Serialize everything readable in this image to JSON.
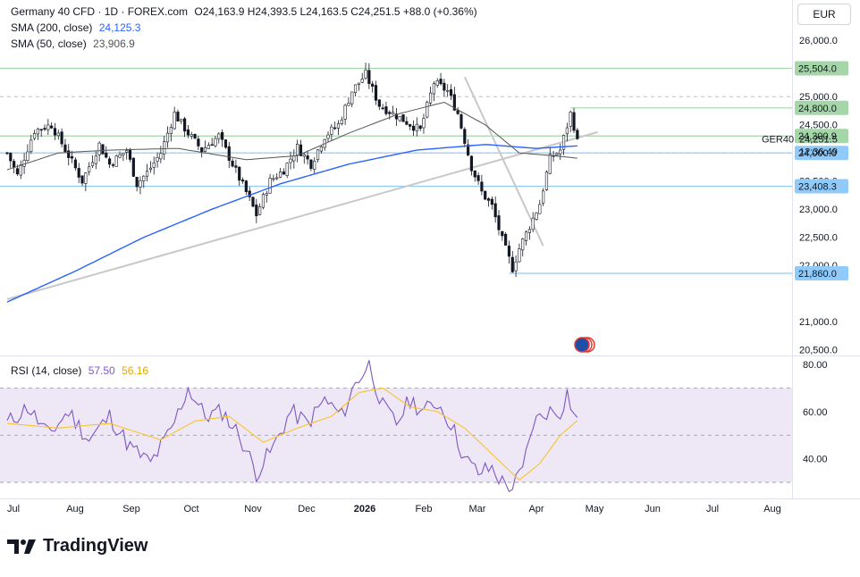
{
  "header": {
    "symbol": "Germany 40 CFD · 1D · FOREX.com",
    "ohlc": "O24,163.9  H24,393.5  L24,163.5  C24,251.5  +88.0 (+0.36%)",
    "sma200_label": "SMA (200, close)",
    "sma200_value": "24,125.3",
    "sma50_label": "SMA (50, close)",
    "sma50_value": "23,906.9",
    "currency": "EUR"
  },
  "rsi_header": {
    "label": "RSI (14, close)",
    "value1": "57.50",
    "value2": "56.16"
  },
  "brand": {
    "name": "TradingView"
  },
  "colors": {
    "up": "#131722",
    "down": "#131722",
    "sma200": "#2962ff",
    "sma50": "#555555",
    "rsi": "#7e57c2",
    "rsi_ma": "#f7c52b",
    "green_level": "#a5d6a7",
    "blue_level": "#90caf9",
    "rsi_band": "#ede7f6",
    "trendline": "#c8c8c8"
  },
  "chart_data": {
    "type": "candlestick",
    "x_ticks": [
      "Jul",
      "Aug",
      "Sep",
      "Oct",
      "Nov",
      "Dec",
      "2026",
      "Feb",
      "Mar",
      "Apr",
      "May",
      "Jun",
      "Jul",
      "Aug"
    ],
    "price_axis_ticks": [
      "26,000.0",
      "25,000.0",
      "24,500.0",
      "23,500.0",
      "23,000.0",
      "22,500.0",
      "22,000.0",
      "21,000.0",
      "20,500.0"
    ],
    "price_range": [
      20400,
      26400
    ],
    "key_points": [
      [
        0,
        24000
      ],
      [
        3,
        23600
      ],
      [
        8,
        24400
      ],
      [
        13,
        24500
      ],
      [
        18,
        23950
      ],
      [
        22,
        23500
      ],
      [
        27,
        24150
      ],
      [
        30,
        23800
      ],
      [
        35,
        24050
      ],
      [
        38,
        23450
      ],
      [
        41,
        23650
      ],
      [
        45,
        24000
      ],
      [
        49,
        24700
      ],
      [
        53,
        24350
      ],
      [
        57,
        24050
      ],
      [
        62,
        24300
      ],
      [
        66,
        23800
      ],
      [
        70,
        23300
      ],
      [
        73,
        22900
      ],
      [
        77,
        23500
      ],
      [
        81,
        23700
      ],
      [
        85,
        24100
      ],
      [
        89,
        23800
      ],
      [
        93,
        24300
      ],
      [
        97,
        24500
      ],
      [
        101,
        25100
      ],
      [
        105,
        25400
      ],
      [
        109,
        24850
      ],
      [
        113,
        24700
      ],
      [
        117,
        24550
      ],
      [
        121,
        24400
      ],
      [
        125,
        25250
      ],
      [
        129,
        25100
      ],
      [
        132,
        24700
      ],
      [
        136,
        23750
      ],
      [
        139,
        23300
      ],
      [
        142,
        23050
      ],
      [
        145,
        22450
      ],
      [
        148,
        21950
      ],
      [
        150,
        22300
      ],
      [
        153,
        22700
      ],
      [
        156,
        23100
      ],
      [
        159,
        23900
      ],
      [
        162,
        24050
      ],
      [
        165,
        24700
      ],
      [
        167,
        24251
      ]
    ],
    "sma200_points": [
      [
        0,
        21350
      ],
      [
        20,
        21900
      ],
      [
        40,
        22500
      ],
      [
        60,
        23000
      ],
      [
        80,
        23450
      ],
      [
        100,
        23800
      ],
      [
        120,
        24050
      ],
      [
        140,
        24150
      ],
      [
        155,
        24080
      ],
      [
        167,
        24125
      ]
    ],
    "sma50_points": [
      [
        0,
        23700
      ],
      [
        15,
        24000
      ],
      [
        30,
        24050
      ],
      [
        50,
        24080
      ],
      [
        70,
        23880
      ],
      [
        85,
        23950
      ],
      [
        100,
        24350
      ],
      [
        115,
        24700
      ],
      [
        128,
        24900
      ],
      [
        140,
        24500
      ],
      [
        150,
        24000
      ],
      [
        160,
        23950
      ],
      [
        167,
        23906
      ]
    ],
    "price_levels": [
      {
        "label": "25,504.0",
        "value": 25504,
        "style": "green"
      },
      {
        "label": "24,800.0",
        "value": 24800,
        "style": "green"
      },
      {
        "label": "24,300.9",
        "value": 24300.9,
        "style": "green"
      },
      {
        "label": "24,000.0",
        "value": 24000,
        "style": "blue"
      },
      {
        "label": "23,408.3",
        "value": 23408.3,
        "style": "blue"
      },
      {
        "label": "21,860.0",
        "value": 21860,
        "style": "blue"
      }
    ],
    "dashed_levels": [
      25000,
      24000
    ],
    "current": {
      "symbol": "GER40",
      "price": "24,251.5",
      "countdown": "12:36:49",
      "value": 24251.5
    },
    "trendlines": [
      {
        "from": [
          0,
          21400
        ],
        "to": [
          173,
          24370
        ]
      },
      {
        "from": [
          134,
          25350
        ],
        "to": [
          157,
          22350
        ]
      }
    ],
    "rsi": {
      "axis_ticks": [
        "80.00",
        "60.00",
        "40.00"
      ],
      "range": [
        27,
        83
      ],
      "band": [
        30,
        70
      ],
      "mid": 50,
      "points": [
        [
          0,
          55
        ],
        [
          6,
          62
        ],
        [
          12,
          50
        ],
        [
          18,
          60
        ],
        [
          24,
          48
        ],
        [
          30,
          58
        ],
        [
          36,
          45
        ],
        [
          42,
          38
        ],
        [
          48,
          52
        ],
        [
          53,
          70
        ],
        [
          58,
          58
        ],
        [
          63,
          60
        ],
        [
          68,
          50
        ],
        [
          73,
          34
        ],
        [
          78,
          45
        ],
        [
          83,
          60
        ],
        [
          88,
          55
        ],
        [
          93,
          65
        ],
        [
          98,
          58
        ],
        [
          102,
          72
        ],
        [
          106,
          80
        ],
        [
          110,
          62
        ],
        [
          114,
          55
        ],
        [
          118,
          65
        ],
        [
          122,
          60
        ],
        [
          126,
          64
        ],
        [
          130,
          55
        ],
        [
          134,
          40
        ],
        [
          138,
          34
        ],
        [
          142,
          36
        ],
        [
          145,
          30
        ],
        [
          148,
          28
        ],
        [
          151,
          35
        ],
        [
          154,
          55
        ],
        [
          158,
          60
        ],
        [
          162,
          60
        ],
        [
          164,
          68
        ],
        [
          166,
          59
        ],
        [
          167,
          57.5
        ]
      ],
      "ma_points": [
        [
          0,
          55
        ],
        [
          15,
          53
        ],
        [
          30,
          55
        ],
        [
          45,
          48
        ],
        [
          55,
          56
        ],
        [
          65,
          58
        ],
        [
          75,
          47
        ],
        [
          85,
          53
        ],
        [
          95,
          58
        ],
        [
          103,
          68
        ],
        [
          110,
          70
        ],
        [
          118,
          62
        ],
        [
          126,
          60
        ],
        [
          134,
          53
        ],
        [
          142,
          42
        ],
        [
          150,
          31
        ],
        [
          156,
          38
        ],
        [
          162,
          50
        ],
        [
          167,
          56.16
        ]
      ]
    }
  }
}
